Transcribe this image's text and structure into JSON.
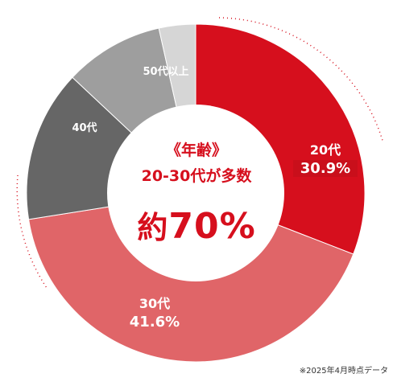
{
  "chart_data": {
    "type": "pie",
    "center_text": {
      "line1": "《年齢》",
      "line2": "20-30代が多数",
      "line3_prefix": "約",
      "line3_value": "70%"
    },
    "slices": [
      {
        "label": "20代",
        "value": 30.9,
        "value_label": "30.9%",
        "color": "#d60f1d"
      },
      {
        "label": "30代",
        "value": 41.6,
        "value_label": "41.6%",
        "color": "#e06568"
      },
      {
        "label": "40代",
        "value": 14.5,
        "value_label": "",
        "color": "#666666"
      },
      {
        "label": "50代以上",
        "value": 9.5,
        "value_label": "",
        "color": "#9e9e9e"
      },
      {
        "label": "",
        "value": 3.5,
        "value_label": "",
        "color": "#d6d6d6"
      }
    ],
    "footnote": "※2025年4月時点データ"
  }
}
